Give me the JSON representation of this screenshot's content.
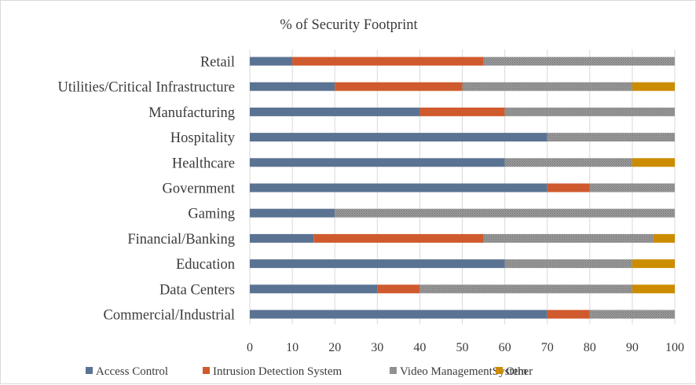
{
  "chart_data": {
    "type": "bar",
    "orientation": "horizontal",
    "stacked": true,
    "title": "% of Security Footprint",
    "xlabel": "",
    "ylabel": "",
    "xlim": [
      0,
      100
    ],
    "x_ticks": [
      "0",
      "10",
      "20",
      "30",
      "40",
      "50",
      "60",
      "70",
      "80",
      "90",
      "100"
    ],
    "grid": true,
    "legend_position": "bottom",
    "categories": [
      "Retail",
      "Utilities/Critical Infrastructure",
      "Manufacturing",
      "Hospitality",
      "Healthcare",
      "Government",
      "Gaming",
      "Financial/Banking",
      "Education",
      "Data Centers",
      "Commercial/Industrial"
    ],
    "series": [
      {
        "name": "Access Control",
        "color": "#5b7392",
        "pattern": "solid",
        "values": [
          10,
          20,
          40,
          70,
          60,
          70,
          20,
          15,
          60,
          30,
          70
        ]
      },
      {
        "name": "Intrusion Detection System",
        "color": "#cf5a2e",
        "pattern": "solid",
        "values": [
          45,
          30,
          20,
          0,
          0,
          10,
          0,
          40,
          0,
          10,
          10
        ]
      },
      {
        "name": "Video ManagementSystem",
        "color": "#8c8c8c",
        "pattern": "dotted",
        "values": [
          45,
          40,
          40,
          30,
          30,
          20,
          80,
          40,
          30,
          50,
          20
        ]
      },
      {
        "name": "Other",
        "color": "#cc8c00",
        "pattern": "solid",
        "values": [
          0,
          10,
          0,
          0,
          10,
          0,
          0,
          5,
          10,
          10,
          0
        ]
      }
    ]
  }
}
